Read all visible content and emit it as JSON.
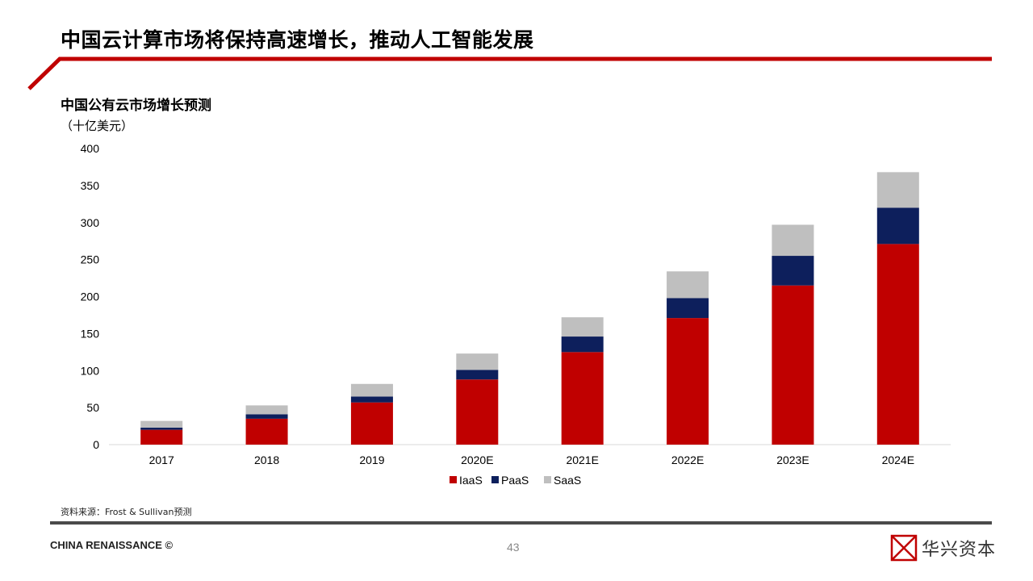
{
  "slide": {
    "title": "中国云计算市场将保持高速增长，推动人工智能发展",
    "chart_title": "中国公有云市场增长预测",
    "unit": "（十亿美元）",
    "source": "资料来源：Frost & Sullivan预测",
    "footer_brand": "CHINA RENAISSANCE ©",
    "page_number": "43",
    "logo_text": "华兴资本",
    "colors": {
      "accent": "#c00000",
      "iaas": "#c00000",
      "paas": "#0d1f5c",
      "saas": "#bfbfbf"
    }
  },
  "chart_data": {
    "type": "bar",
    "stacked": true,
    "categories": [
      "2017",
      "2018",
      "2019",
      "2020E",
      "2021E",
      "2022E",
      "2023E",
      "2024E"
    ],
    "series": [
      {
        "name": "IaaS",
        "color": "#c00000",
        "values": [
          20,
          35,
          57,
          88,
          125,
          171,
          215,
          271
        ]
      },
      {
        "name": "PaaS",
        "color": "#0d1f5c",
        "values": [
          3,
          6,
          8,
          13,
          21,
          27,
          40,
          49
        ]
      },
      {
        "name": "SaaS",
        "color": "#bfbfbf",
        "values": [
          9,
          12,
          17,
          22,
          26,
          36,
          42,
          48
        ]
      }
    ],
    "ylim": [
      0,
      400
    ],
    "yticks": [
      "0",
      "50",
      "100",
      "150",
      "200",
      "250",
      "300",
      "350",
      "400"
    ],
    "grid": false,
    "legend": "bottom"
  }
}
